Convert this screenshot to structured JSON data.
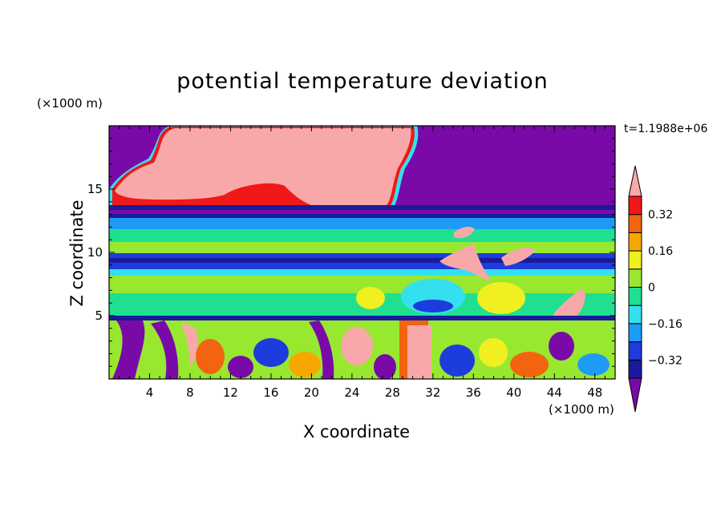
{
  "chart_data": {
    "type": "heatmap",
    "title": "potential temperature deviation",
    "xlabel": "X coordinate",
    "ylabel": "Z coordinate",
    "x_scale_label": "(×1000 m)",
    "y_scale_label": "(×1000 m)",
    "time_label": "t=1.1988e+06",
    "xlim": [
      0,
      50
    ],
    "ylim": [
      0,
      20
    ],
    "x_ticks": [
      "4",
      "8",
      "12",
      "16",
      "20",
      "24",
      "28",
      "32",
      "36",
      "40",
      "44",
      "48"
    ],
    "y_ticks": [
      "5",
      "10",
      "15"
    ],
    "colorbar": {
      "levels": [
        -0.4,
        -0.32,
        -0.24,
        -0.16,
        -0.08,
        0,
        0.08,
        0.16,
        0.24,
        0.32,
        0.4
      ],
      "tick_labels": [
        "0.32",
        "0.16",
        "0",
        "−0.16",
        "−0.32"
      ],
      "colors": [
        "#7a0aa8",
        "#1a1a9a",
        "#1d3cdc",
        "#1e9bf5",
        "#34e0f0",
        "#20e090",
        "#98e830",
        "#f0f020",
        "#f7a800",
        "#f26410",
        "#f01818",
        "#f8a8a8"
      ]
    },
    "regions": [
      {
        "z_range": [
          14.5,
          20
        ],
        "x_range": [
          0,
          50
        ],
        "description": "upper layer: large positive anomaly (>0.4) centered x≈3–25, strong negative (<−0.4) elsewhere"
      },
      {
        "z_range": [
          12.5,
          14.5
        ],
        "x_range": [
          0,
          50
        ],
        "description": "band of strong negative deviation"
      },
      {
        "z_range": [
          5,
          12.5
        ],
        "x_range": [
          0,
          50
        ],
        "description": "mid layers near zero, alternating ±0.1 bands; positive patches near x≈36–44"
      },
      {
        "z_range": [
          0,
          5
        ],
        "x_range": [
          0,
          50
        ],
        "description": "turbulent boundary layer with mixed strong positive and negative plumes; maximum near x≈31–33"
      }
    ]
  }
}
